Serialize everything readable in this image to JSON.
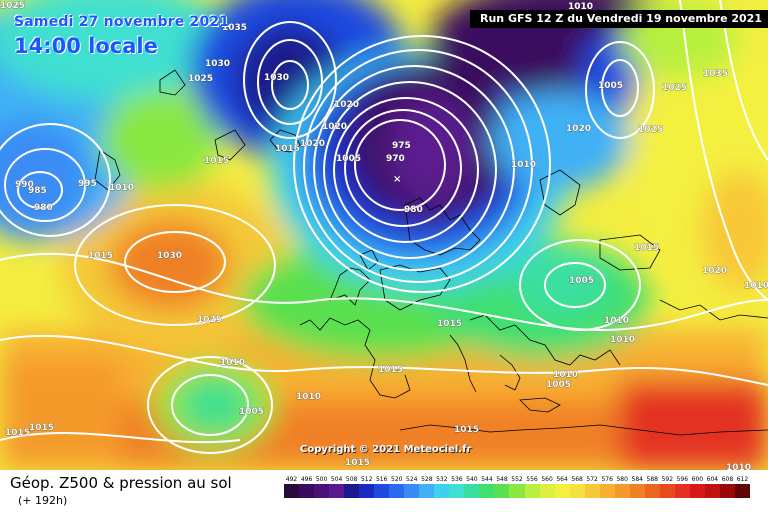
{
  "header": {
    "date": "Samedi 27 novembre 2021",
    "time": "14:00 locale",
    "run": "Run GFS 12 Z du Vendredi 19 novembre 2021"
  },
  "copyright": "Copyright © 2021 Meteociel.fr",
  "legend": {
    "title": "Géop. Z500 & pression au sol",
    "subtitle": "(+ 192h)",
    "scale": [
      "492",
      "496",
      "500",
      "504",
      "508",
      "512",
      "516",
      "520",
      "524",
      "528",
      "532",
      "536",
      "540",
      "544",
      "548",
      "552",
      "556",
      "560",
      "564",
      "568",
      "572",
      "576",
      "580",
      "584",
      "588",
      "592",
      "596",
      "600",
      "604",
      "608",
      "612"
    ],
    "colors": [
      "#2a0a3a",
      "#3a0c5e",
      "#4b1078",
      "#5a1a8e",
      "#1a1a8c",
      "#1a2cc0",
      "#1f4ae0",
      "#2a6af0",
      "#3a8cf5",
      "#3fb0f5",
      "#3fd0ef",
      "#40e0d0",
      "#3adfa0",
      "#40df70",
      "#5ae050",
      "#8ae840",
      "#b8f040",
      "#e0f040",
      "#f4f040",
      "#f8e040",
      "#f8c838",
      "#f8b030",
      "#f49a2c",
      "#f08028",
      "#ec6424",
      "#e84a20",
      "#e43020",
      "#d81818",
      "#c01010",
      "#980808",
      "#600404"
    ]
  },
  "isobars": [
    "1035",
    "1030",
    "1025",
    "1020",
    "1030",
    "1010",
    "1005",
    "1020",
    "1035",
    "1010",
    "1025",
    "1025",
    "1020",
    "1015",
    "1020",
    "1005",
    "975",
    "970",
    "980",
    "990",
    "985",
    "980",
    "995",
    "1010",
    "1015",
    "1030",
    "1025",
    "1015",
    "1005",
    "1010",
    "1020",
    "1015",
    "1010",
    "1010",
    "1010",
    "1010",
    "1015",
    "1005",
    "1010",
    "1015",
    "1005",
    "1015",
    "1015",
    "1015",
    "1015",
    "1010",
    "1005"
  ]
}
